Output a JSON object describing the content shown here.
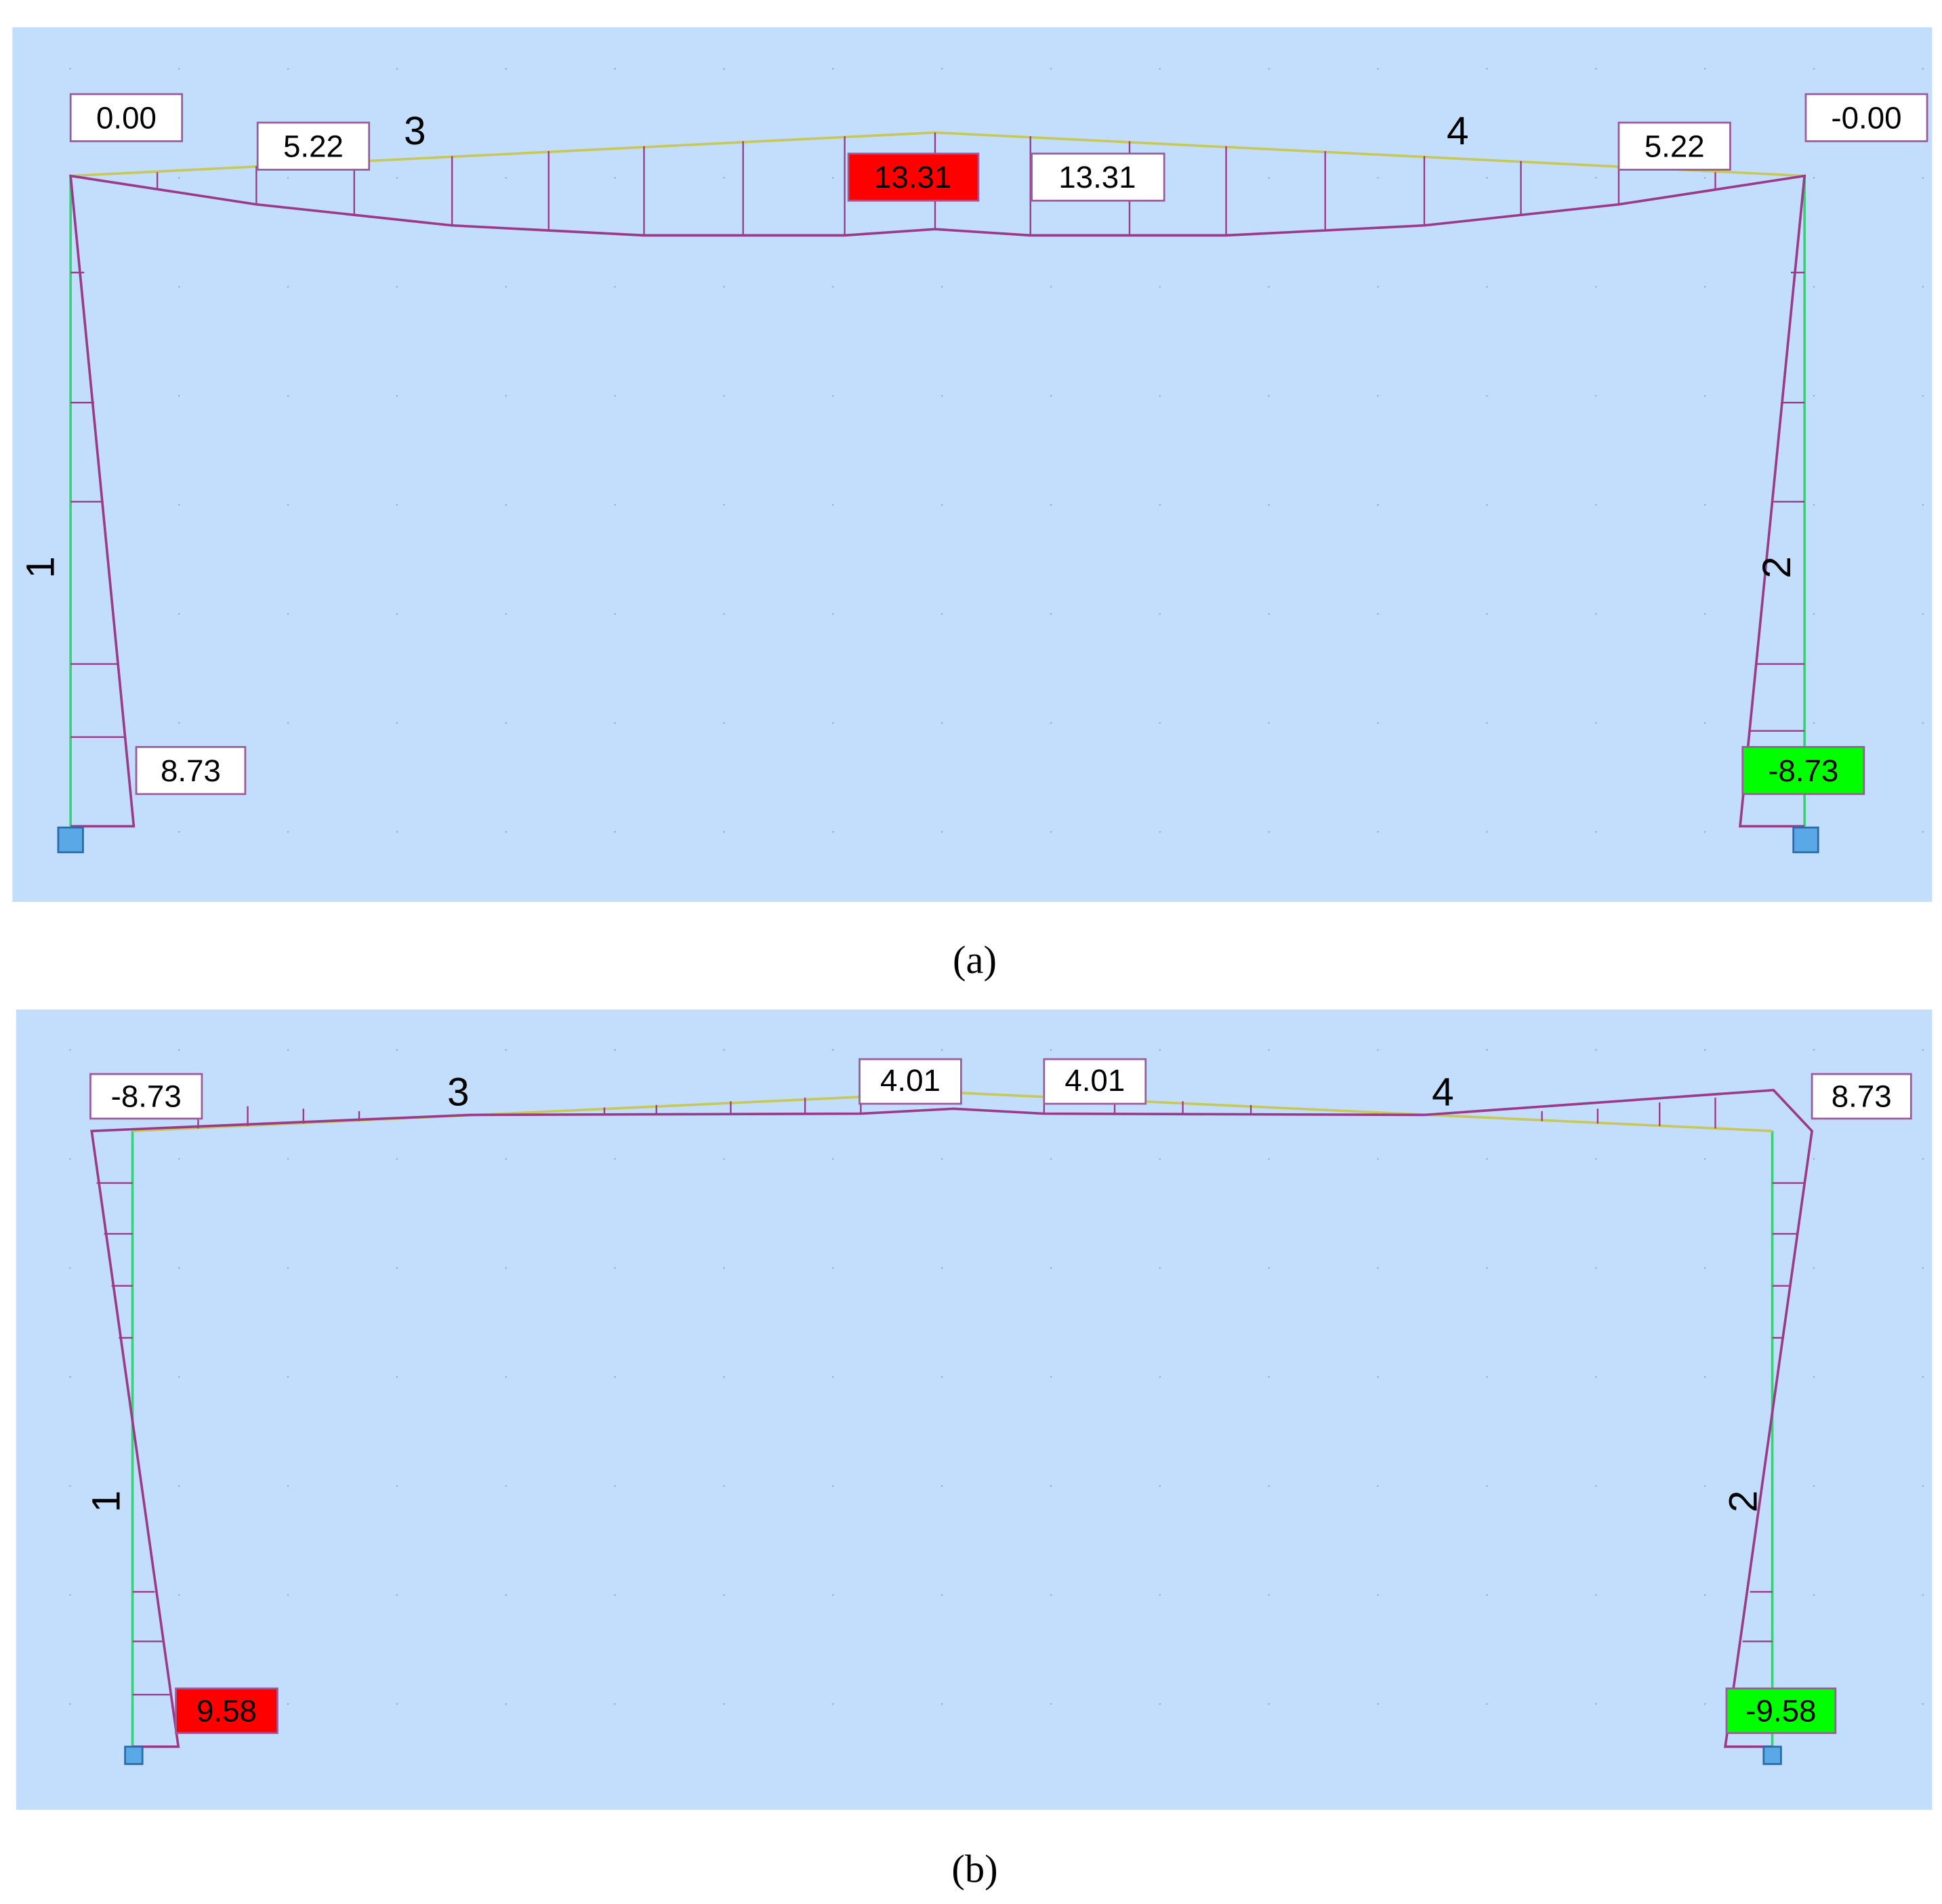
{
  "panels": [
    {
      "caption": "(a)",
      "members": [
        "1",
        "2",
        "3",
        "4"
      ],
      "labels": [
        "0.00",
        "5.22",
        "13.31",
        "13.31",
        "5.22",
        "-0.00",
        "8.73",
        "-8.73"
      ]
    },
    {
      "caption": "(b)",
      "members": [
        "1",
        "2",
        "3",
        "4"
      ],
      "labels": [
        "-8.73",
        "4.01",
        "4.01",
        "8.73",
        "9.58",
        "-9.58"
      ]
    }
  ]
}
